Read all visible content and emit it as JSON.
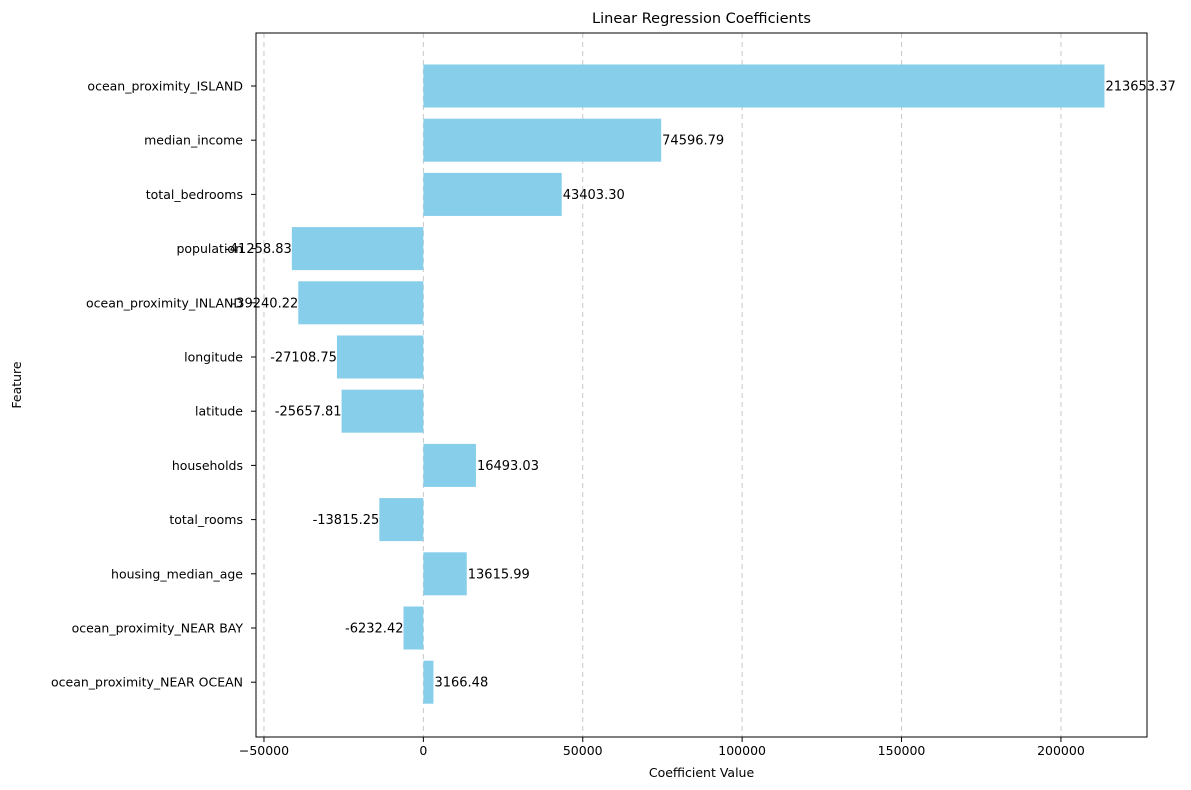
{
  "chart_data": {
    "type": "bar",
    "orientation": "horizontal",
    "title": "Linear Regression Coefficients",
    "xlabel": "Coefficient Value",
    "ylabel": "Feature",
    "xlim": [
      -52500,
      227000
    ],
    "xticks": [
      -50000,
      0,
      50000,
      100000,
      150000,
      200000
    ],
    "xtick_labels": [
      "−50000",
      "0",
      "50000",
      "100000",
      "150000",
      "200000"
    ],
    "grid": "x-dashed",
    "bar_color": "#87ceeb",
    "categories": [
      "ocean_proximity_ISLAND",
      "median_income",
      "total_bedrooms",
      "population",
      "ocean_proximity_INLAND",
      "longitude",
      "latitude",
      "households",
      "total_rooms",
      "housing_median_age",
      "ocean_proximity_NEAR BAY",
      "ocean_proximity_NEAR OCEAN"
    ],
    "values": [
      213653.37,
      74596.79,
      43403.3,
      -41258.83,
      -39240.22,
      -27108.75,
      -25657.81,
      16493.03,
      -13815.25,
      13615.99,
      -6232.42,
      3166.48
    ],
    "value_labels": [
      "213653.37",
      "74596.79",
      "43403.30",
      "-41258.83",
      "-39240.22",
      "-27108.75",
      "-25657.81",
      "16493.03",
      "-13815.25",
      "13615.99",
      "-6232.42",
      "3166.48"
    ]
  }
}
